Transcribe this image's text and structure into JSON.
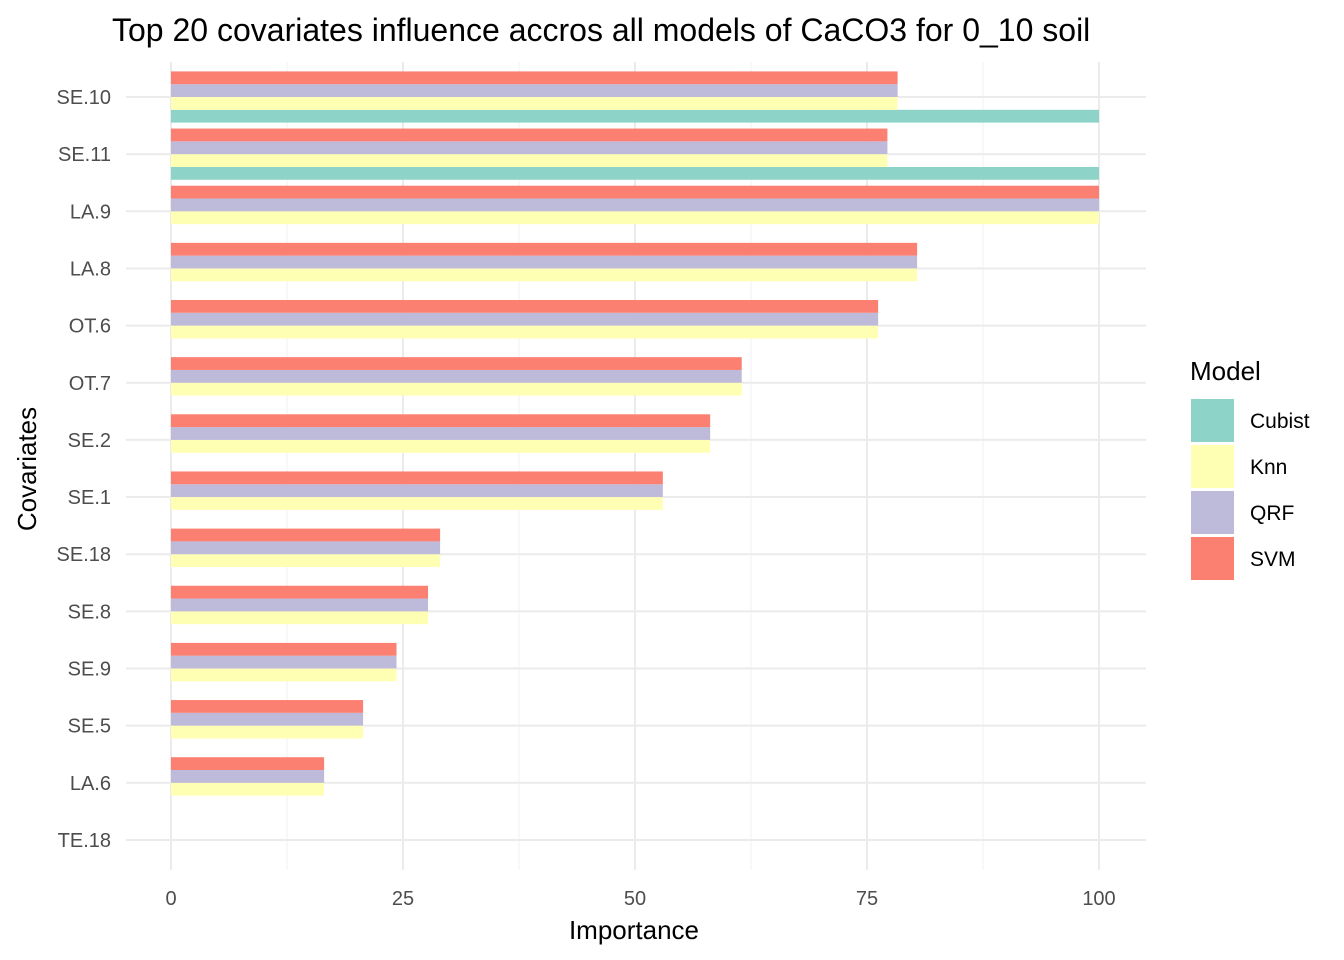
{
  "chart_data": {
    "type": "bar",
    "orientation": "horizontal",
    "title": "Top 20 covariates influence accros all models of CaCO3 for 0_10 soil",
    "xlabel": "Importance",
    "ylabel": "Covariates",
    "xlim": [
      0,
      100
    ],
    "xticks": [
      "0",
      "25",
      "50",
      "75",
      "100"
    ],
    "grid": true,
    "legend_title": "Model",
    "legend_position": "right",
    "categories": [
      "SE.10",
      "SE.11",
      "LA.9",
      "LA.8",
      "OT.6",
      "OT.7",
      "SE.2",
      "SE.1",
      "SE.18",
      "SE.8",
      "SE.9",
      "SE.5",
      "LA.6",
      "TE.18"
    ],
    "series": [
      {
        "name": "Cubist",
        "color": "#8DD3C7",
        "values": [
          100,
          100,
          null,
          null,
          null,
          null,
          null,
          null,
          null,
          null,
          null,
          null,
          null,
          null
        ]
      },
      {
        "name": "Knn",
        "color": "#FFFFB3",
        "values": [
          78.3,
          77.2,
          100,
          80.4,
          76.2,
          61.5,
          58.1,
          53.0,
          29.0,
          27.7,
          24.3,
          20.7,
          16.5,
          null
        ]
      },
      {
        "name": "QRF",
        "color": "#BEBADA",
        "values": [
          78.3,
          77.2,
          100,
          80.4,
          76.2,
          61.5,
          58.1,
          53.0,
          29.0,
          27.7,
          24.3,
          20.7,
          16.5,
          null
        ]
      },
      {
        "name": "SVM",
        "color": "#FB8072",
        "values": [
          78.3,
          77.2,
          100,
          80.4,
          76.2,
          61.5,
          58.1,
          53.0,
          29.0,
          27.7,
          24.3,
          20.7,
          16.5,
          null
        ]
      }
    ]
  }
}
